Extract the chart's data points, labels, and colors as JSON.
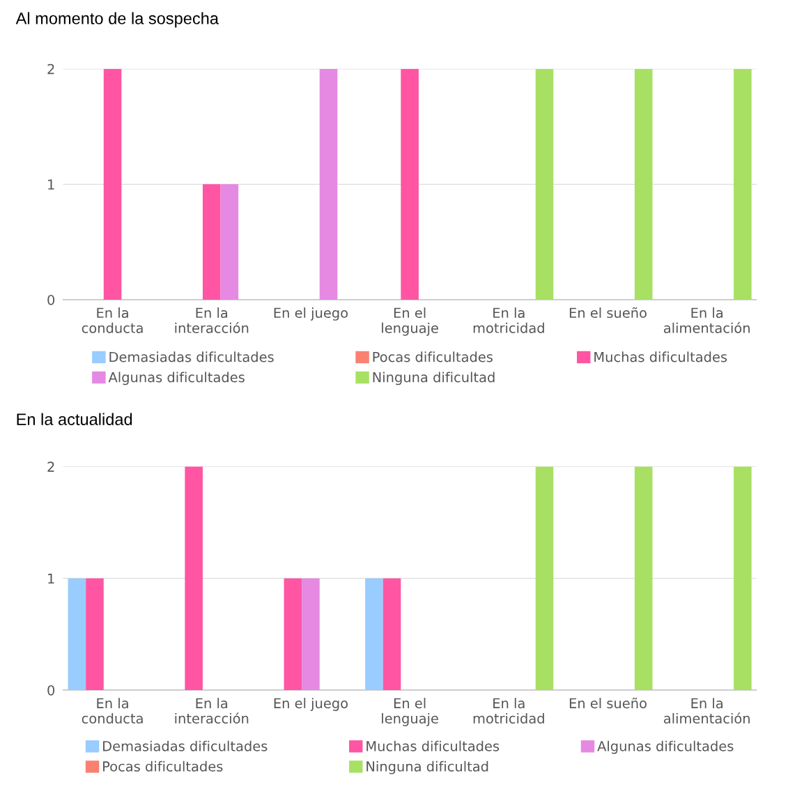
{
  "chart_data": [
    {
      "type": "bar",
      "title": "Al momento de la sospecha",
      "categories": [
        "En la\nconducta",
        "En la\ninteracción",
        "En el juego",
        "En el\nlenguaje",
        "En la\nmotricidad",
        "En el sueño",
        "En la\nalimentación"
      ],
      "ylim": [
        0,
        2
      ],
      "yticks": [
        0,
        1,
        2
      ],
      "grid": "y",
      "legend": "bottom",
      "series": [
        {
          "name": "Demasiadas dificultades",
          "color": "#99ccff",
          "values": [
            0,
            0,
            0,
            0,
            0,
            0,
            0
          ]
        },
        {
          "name": "Pocas dificultades",
          "color": "#fa8072",
          "values": [
            0,
            0,
            0,
            0,
            0,
            0,
            0
          ]
        },
        {
          "name": "Muchas dificultades",
          "color": "#ff55a3",
          "values": [
            2,
            1,
            0,
            2,
            0,
            0,
            0
          ]
        },
        {
          "name": "Algunas dificultades",
          "color": "#e589e3",
          "values": [
            0,
            1,
            2,
            0,
            0,
            0,
            0
          ]
        },
        {
          "name": "Ninguna dificultad",
          "color": "#a8e063",
          "values": [
            0,
            0,
            0,
            0,
            2,
            2,
            2
          ]
        }
      ]
    },
    {
      "type": "bar",
      "title": "En la actualidad",
      "categories": [
        "En la\nconducta",
        "En la\ninteracción",
        "En el juego",
        "En el\nlenguaje",
        "En la\nmotricidad",
        "En el sueño",
        "En la\nalimentación"
      ],
      "ylim": [
        0,
        2
      ],
      "yticks": [
        0,
        1,
        2
      ],
      "grid": "y",
      "legend": "bottom",
      "series": [
        {
          "name": "Demasiadas dificultades",
          "color": "#99ccff",
          "values": [
            1,
            0,
            0,
            1,
            0,
            0,
            0
          ]
        },
        {
          "name": "Muchas dificultades",
          "color": "#ff55a3",
          "values": [
            1,
            2,
            1,
            1,
            0,
            0,
            0
          ]
        },
        {
          "name": "Algunas dificultades",
          "color": "#e589e3",
          "values": [
            0,
            0,
            1,
            0,
            0,
            0,
            0
          ]
        },
        {
          "name": "Pocas dificultades",
          "color": "#fa8072",
          "values": [
            0,
            0,
            0,
            0,
            0,
            0,
            0
          ]
        },
        {
          "name": "Ninguna dificultad",
          "color": "#a8e063",
          "values": [
            0,
            0,
            0,
            0,
            2,
            2,
            2
          ]
        }
      ]
    }
  ]
}
